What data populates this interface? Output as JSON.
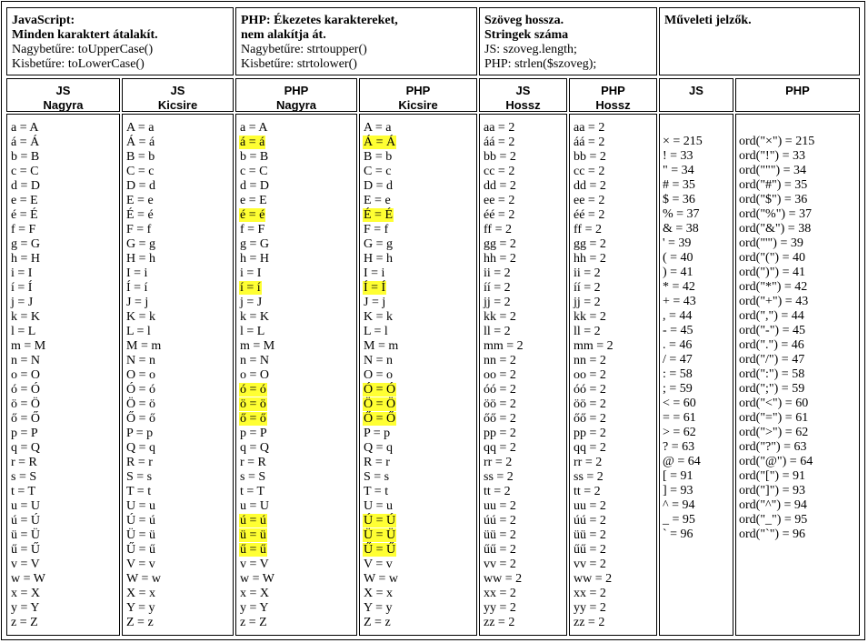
{
  "descriptions": [
    {
      "bold": [
        "JavaScript:",
        "Minden karaktert átalakít."
      ],
      "lines": [
        "Nagybetűre: toUpperCase()",
        "Kisbetűre: toLowerCase()"
      ]
    },
    {
      "bold": [
        "PHP: Ékezetes karaktereket,",
        "nem alakítja át."
      ],
      "lines": [
        "Nagybetűre: strtoupper()",
        "Kisbetűre: strtolower()"
      ]
    },
    {
      "bold": [
        "Szöveg hossza.",
        "Stringek száma"
      ],
      "lines": [
        "JS: szoveg.length;",
        "PHP: strlen($szoveg);"
      ]
    },
    {
      "bold": [
        "Műveleti jelzők."
      ],
      "lines": []
    }
  ],
  "headers": [
    [
      "JS",
      "Nagyra"
    ],
    [
      "JS",
      "Kicsire"
    ],
    [
      "PHP",
      "Nagyra"
    ],
    [
      "PHP",
      "Kicsire"
    ],
    [
      "JS",
      "Hossz"
    ],
    [
      "PHP",
      "Hossz"
    ],
    [
      "JS"
    ],
    [
      "PHP"
    ]
  ],
  "columns": {
    "js_upper": [
      "a = A",
      "á = Á",
      "b = B",
      "c = C",
      "d = D",
      "e = E",
      "é = É",
      "f = F",
      "g = G",
      "h = H",
      "i = I",
      "í = Í",
      "j = J",
      "k = K",
      "l = L",
      "m = M",
      "n = N",
      "o = O",
      "ó = Ó",
      "ö = Ö",
      "ő = Ő",
      "p = P",
      "q = Q",
      "r = R",
      "s = S",
      "t = T",
      "u = U",
      "ú = Ú",
      "ü = Ü",
      "ű = Ű",
      "v = V",
      "w = W",
      "x = X",
      "y = Y",
      "z = Z"
    ],
    "js_lower": [
      "A = a",
      "Á = á",
      "B = b",
      "C = c",
      "D = d",
      "E = e",
      "É = é",
      "F = f",
      "G = g",
      "H = h",
      "I = i",
      "Í = í",
      "J = j",
      "K = k",
      "L = l",
      "M = m",
      "N = n",
      "O = o",
      "Ó = ó",
      "Ö = ö",
      "Ő = ő",
      "P = p",
      "Q = q",
      "R = r",
      "S = s",
      "T = t",
      "U = u",
      "Ú = ú",
      "Ü = ü",
      "Ű = ű",
      "V = v",
      "W = w",
      "X = x",
      "Y = y",
      "Z = z"
    ],
    "php_upper": [
      "a = A",
      "á = á",
      "b = B",
      "c = C",
      "d = D",
      "e = E",
      "é = é",
      "f = F",
      "g = G",
      "h = H",
      "i = I",
      "í = í",
      "j = J",
      "k = K",
      "l = L",
      "m = M",
      "n = N",
      "o = O",
      "ó = ó",
      "ö = ö",
      "ő = ő",
      "p = P",
      "q = Q",
      "r = R",
      "s = S",
      "t = T",
      "u = U",
      "ú = ú",
      "ü = ü",
      "ű = ű",
      "v = V",
      "w = W",
      "x = X",
      "y = Y",
      "z = Z"
    ],
    "php_lower": [
      "A = a",
      "Á = Á",
      "B = b",
      "C = c",
      "D = d",
      "E = e",
      "É = É",
      "F = f",
      "G = g",
      "H = h",
      "I = i",
      "Í = Í",
      "J = j",
      "K = k",
      "L = l",
      "M = m",
      "N = n",
      "O = o",
      "Ó = Ó",
      "Ö = Ö",
      "Ő = Ő",
      "P = p",
      "Q = q",
      "R = r",
      "S = s",
      "T = t",
      "U = u",
      "Ú = Ú",
      "Ü = Ü",
      "Ű = Ű",
      "V = v",
      "W = w",
      "X = x",
      "Y = y",
      "Z = z"
    ],
    "highlight_rows": [
      1,
      6,
      11,
      18,
      19,
      20,
      27,
      28,
      29
    ],
    "js_len": [
      "aa = 2",
      "áá = 2",
      "bb = 2",
      "cc = 2",
      "dd = 2",
      "ee = 2",
      "éé = 2",
      "ff = 2",
      "gg = 2",
      "hh = 2",
      "ii = 2",
      "íí = 2",
      "jj = 2",
      "kk = 2",
      "ll = 2",
      "mm = 2",
      "nn = 2",
      "oo = 2",
      "óó = 2",
      "öö = 2",
      "őő = 2",
      "pp = 2",
      "qq = 2",
      "rr = 2",
      "ss = 2",
      "tt = 2",
      "uu = 2",
      "úú = 2",
      "üü = 2",
      "űű = 2",
      "vv = 2",
      "ww = 2",
      "xx = 2",
      "yy = 2",
      "zz = 2"
    ],
    "php_len": [
      "aa = 2",
      "áá = 2",
      "bb = 2",
      "cc = 2",
      "dd = 2",
      "ee = 2",
      "éé = 2",
      "ff = 2",
      "gg = 2",
      "hh = 2",
      "ii = 2",
      "íí = 2",
      "jj = 2",
      "kk = 2",
      "ll = 2",
      "mm = 2",
      "nn = 2",
      "oo = 2",
      "óó = 2",
      "öö = 2",
      "őő = 2",
      "pp = 2",
      "qq = 2",
      "rr = 2",
      "ss = 2",
      "tt = 2",
      "uu = 2",
      "úú = 2",
      "üü = 2",
      "űű = 2",
      "vv = 2",
      "ww = 2",
      "xx = 2",
      "yy = 2",
      "zz = 2"
    ],
    "js_sym": [
      "× = 215",
      "! = 33",
      "\" = 34",
      "# = 35",
      "$ = 36",
      "% = 37",
      "& = 38",
      "' = 39",
      "( = 40",
      ") = 41",
      "* = 42",
      "+ = 43",
      ", = 44",
      "- = 45",
      ". = 46",
      "/ = 47",
      ": = 58",
      "; = 59",
      "< = 60",
      "= = 61",
      "> = 62",
      "? = 63",
      "@ = 64",
      "[ = 91",
      "] = 93",
      "^ = 94",
      "_ = 95",
      "` = 96"
    ],
    "php_sym": [
      "ord(\"×\") = 215",
      "ord(\"!\") = 33",
      "ord(\"\"\") = 34",
      "ord(\"#\") = 35",
      "ord(\"$\") = 36",
      "ord(\"%\") = 37",
      "ord(\"&\") = 38",
      "ord(\"'\") = 39",
      "ord(\"(\") = 40",
      "ord(\")\") = 41",
      "ord(\"*\") = 42",
      "ord(\"+\") = 43",
      "ord(\",\") = 44",
      "ord(\"-\") = 45",
      "ord(\".\") = 46",
      "ord(\"/\") = 47",
      "ord(\":\") = 58",
      "ord(\";\") = 59",
      "ord(\"<\") = 60",
      "ord(\"=\") = 61",
      "ord(\">\") = 62",
      "ord(\"?\") = 63",
      "ord(\"@\") = 64",
      "ord(\"[\") = 91",
      "ord(\"]\") = 93",
      "ord(\"^\") = 94",
      "ord(\"_\") = 95",
      "ord(\"`\") = 96"
    ]
  }
}
